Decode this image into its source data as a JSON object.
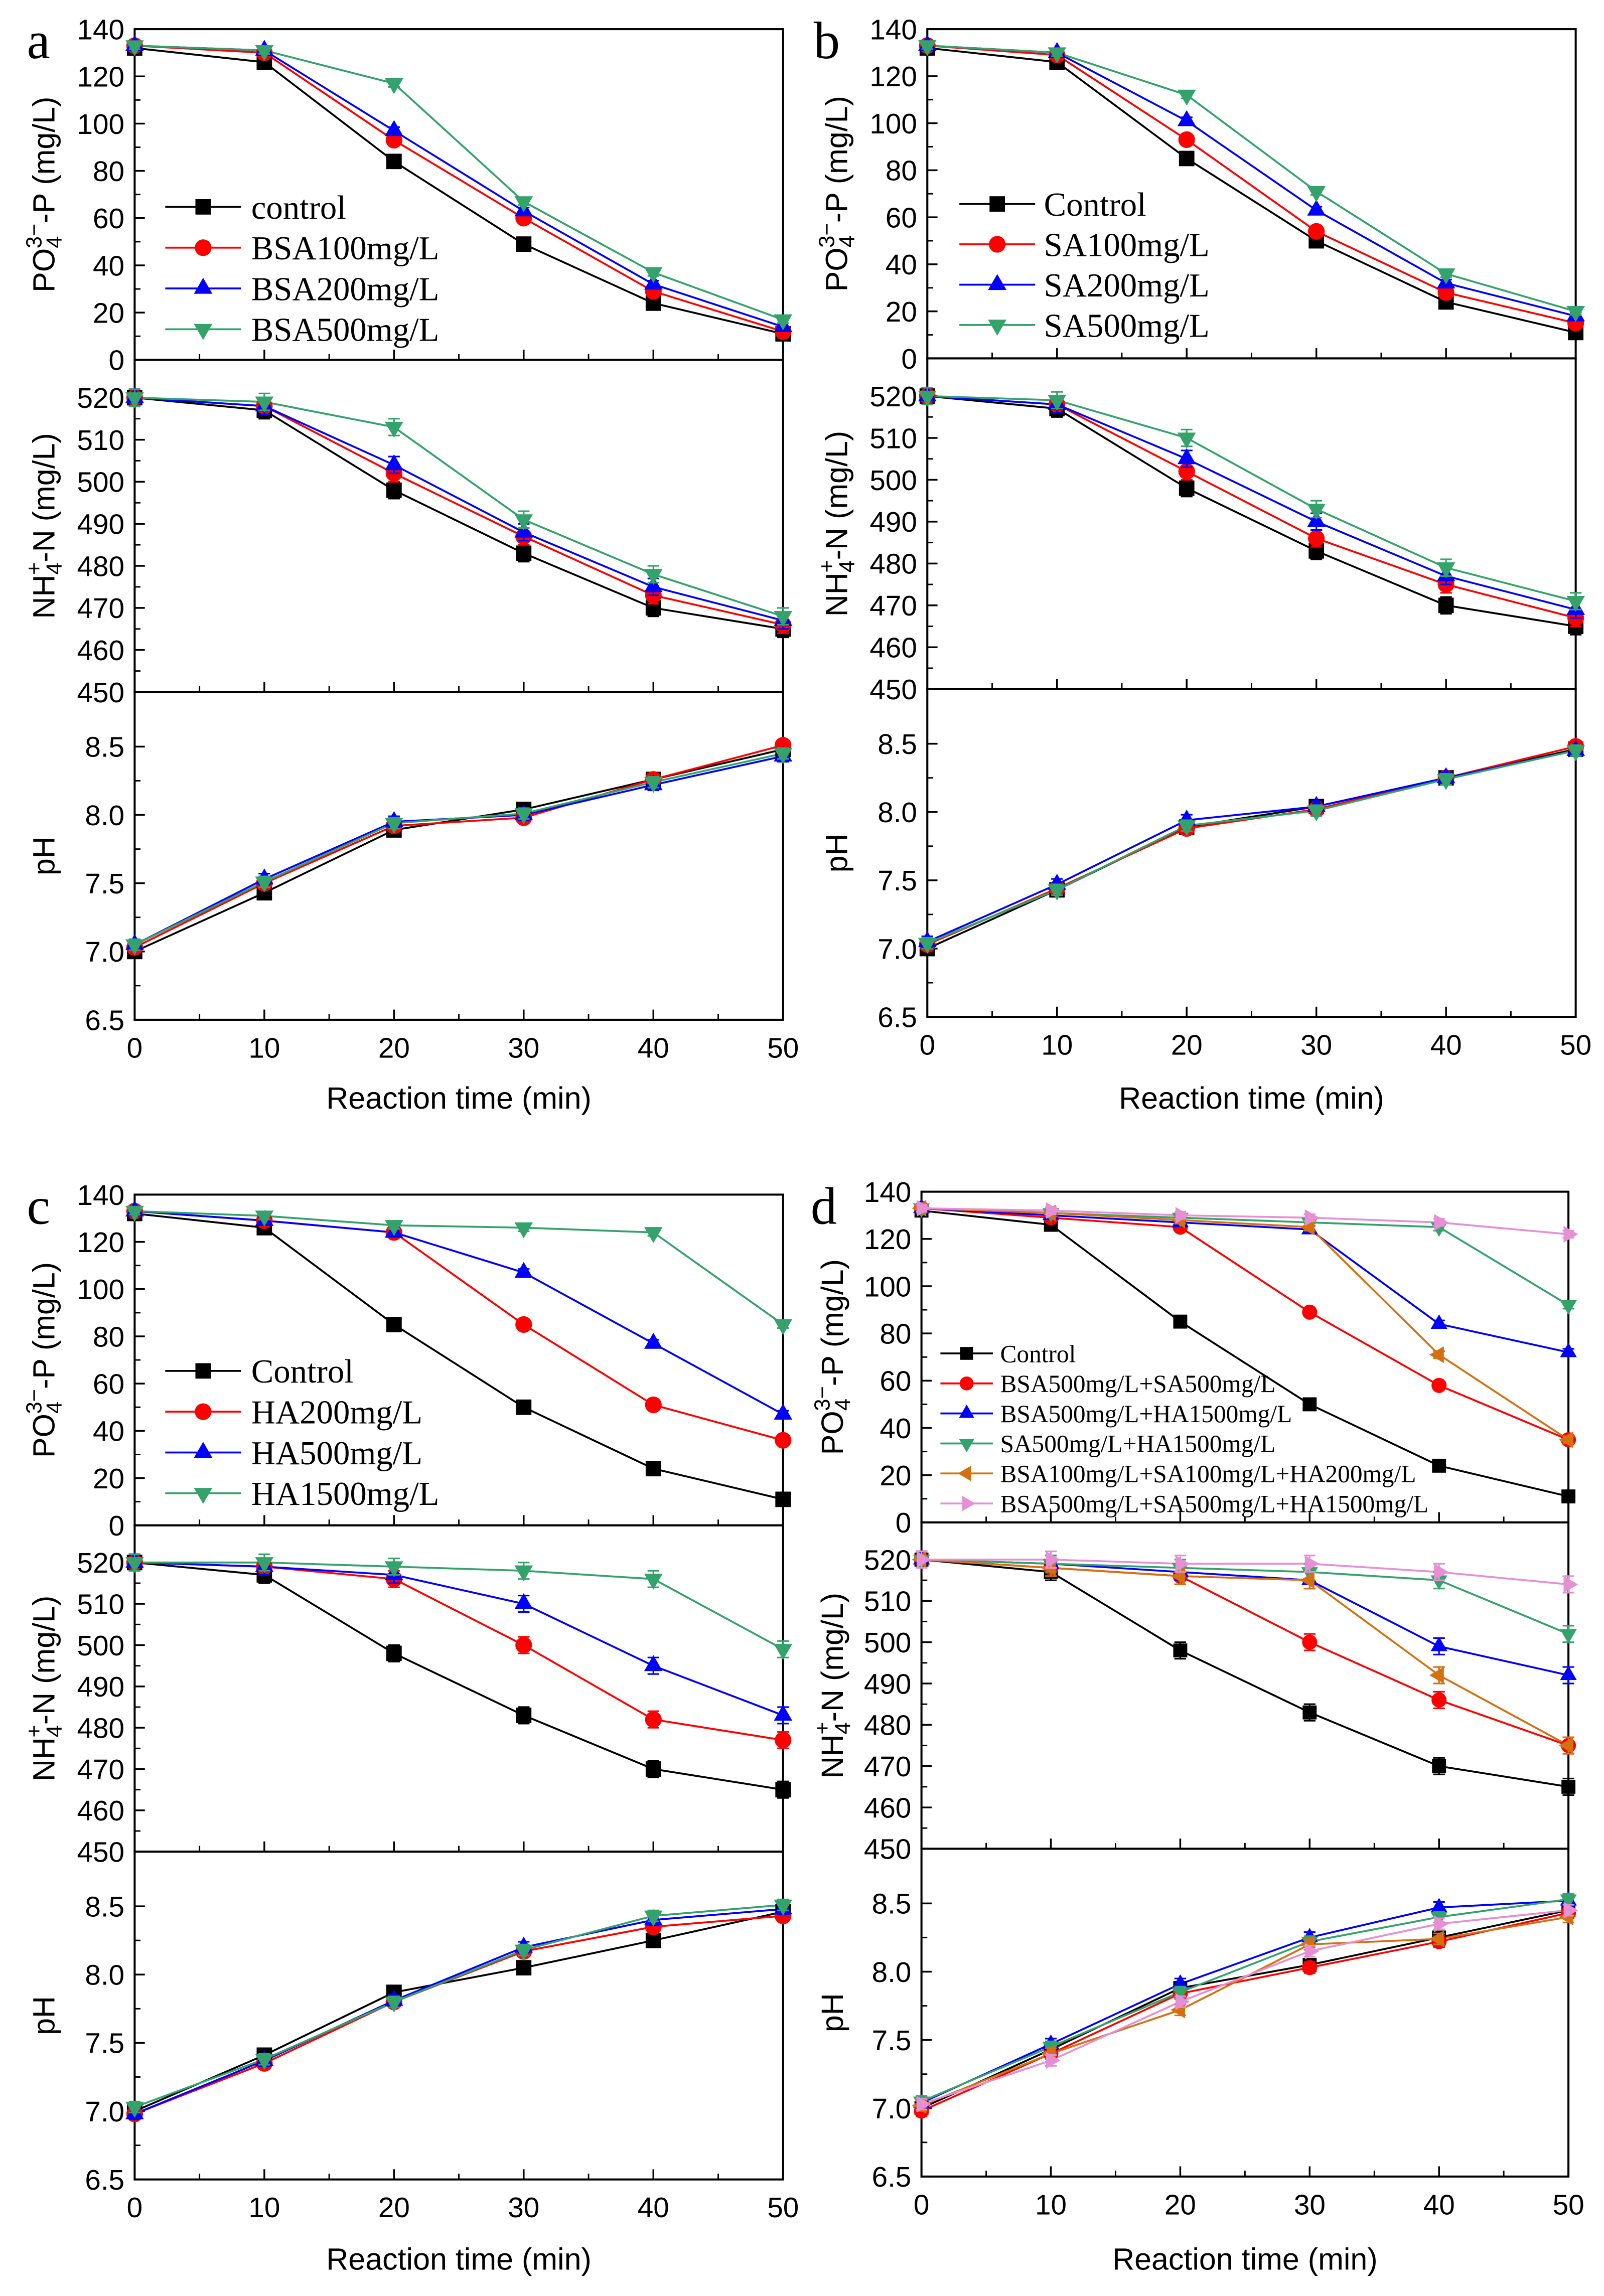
{
  "chart_data": [
    {
      "panel": "a",
      "type": "line",
      "xlabel": "Reaction time (min)",
      "x": [
        0,
        10,
        20,
        30,
        40,
        50
      ],
      "xlim": [
        0,
        50
      ],
      "xticks": [
        0,
        10,
        20,
        30,
        40,
        50
      ],
      "legend_location": "lower-left",
      "subplots": {
        "PO4_P": {
          "ylabel": {
            "text": "PO",
            "sub": "4",
            "sup": "3−",
            "tail": "-P (mg/L)"
          },
          "ylim": [
            0,
            140
          ],
          "yticks": [
            0,
            20,
            40,
            60,
            80,
            100,
            120,
            140
          ],
          "decimals": 0,
          "error_bar": 1.5
        },
        "NH4_N": {
          "ylabel": {
            "text": "NH",
            "sub": "4",
            "sup": "+",
            "tail": "-N (mg/L)"
          },
          "ylim": [
            450,
            529
          ],
          "yticks": [
            450,
            460,
            470,
            480,
            490,
            500,
            510,
            520
          ],
          "decimals": 0,
          "error_bar": 2
        },
        "pH": {
          "ylabel": {
            "text": "pH"
          },
          "ylim": [
            6.5,
            8.9
          ],
          "yticks": [
            6.5,
            7.0,
            7.5,
            8.0,
            8.5
          ],
          "decimals": 1,
          "error_bar": 0.04
        }
      },
      "series": [
        {
          "name": "control",
          "color": "#000000",
          "marker": "square",
          "values": {
            "PO4_P": [
              132,
              126,
              84,
              49,
              24,
              11
            ],
            "NH4_N": [
              520,
              517,
              498,
              483,
              470,
              465
            ],
            "pH": [
              7.0,
              7.43,
              7.89,
              8.04,
              8.26,
              8.48
            ]
          }
        },
        {
          "name": "BSA100mg/L",
          "color": "#ff0000",
          "marker": "circle",
          "values": {
            "PO4_P": [
              133,
              130,
              93,
              60,
              29,
              12
            ],
            "NH4_N": [
              520,
              518,
              502,
              487,
              473,
              466
            ],
            "pH": [
              7.03,
              7.5,
              7.92,
              7.98,
              8.26,
              8.51
            ]
          }
        },
        {
          "name": "BSA200mg/L",
          "color": "#0000ff",
          "marker": "triangle-up",
          "values": {
            "PO4_P": [
              133,
              131,
              97,
              63,
              32,
              14
            ],
            "NH4_N": [
              520,
              518,
              504,
              488,
              475,
              467
            ],
            "pH": [
              7.05,
              7.53,
              7.95,
              8.0,
              8.22,
              8.43
            ]
          }
        },
        {
          "name": "BSA500mg/L",
          "color": "#33a36b",
          "marker": "triangle-down",
          "values": {
            "PO4_P": [
              133,
              131,
              117,
              67,
              37,
              17
            ],
            "NH4_N": [
              520,
              519,
              513,
              491,
              478,
              468
            ],
            "pH": [
              7.05,
              7.51,
              7.94,
              8.01,
              8.24,
              8.45
            ]
          }
        }
      ]
    },
    {
      "panel": "b",
      "type": "line",
      "xlabel": "Reaction time (min)",
      "x": [
        0,
        10,
        20,
        30,
        40,
        50
      ],
      "xlim": [
        0,
        50
      ],
      "xticks": [
        0,
        10,
        20,
        30,
        40,
        50
      ],
      "legend_location": "lower-left",
      "subplots": {
        "PO4_P": {
          "ylabel": {
            "text": "PO",
            "sub": "4",
            "sup": "3−",
            "tail": "-P (mg/L)"
          },
          "ylim": [
            0,
            140
          ],
          "yticks": [
            0,
            20,
            40,
            60,
            80,
            100,
            120,
            140
          ],
          "decimals": 0,
          "error_bar": 1.5
        },
        "NH4_N": {
          "ylabel": {
            "text": "NH",
            "sub": "4",
            "sup": "+",
            "tail": "-N (mg/L)"
          },
          "ylim": [
            450,
            529
          ],
          "yticks": [
            450,
            460,
            470,
            480,
            490,
            500,
            510,
            520
          ],
          "decimals": 0,
          "error_bar": 2
        },
        "pH": {
          "ylabel": {
            "text": "pH"
          },
          "ylim": [
            6.5,
            8.9
          ],
          "yticks": [
            6.5,
            7.0,
            7.5,
            8.0,
            8.5
          ],
          "decimals": 1,
          "error_bar": 0.04
        }
      },
      "series": [
        {
          "name": "Control",
          "color": "#000000",
          "marker": "square",
          "values": {
            "PO4_P": [
              132,
              126,
              85,
              50,
              24,
              11
            ],
            "NH4_N": [
              520,
              517,
              498,
              483,
              470,
              465
            ],
            "pH": [
              7.0,
              7.43,
              7.89,
              8.04,
              8.25,
              8.46
            ]
          }
        },
        {
          "name": "SA100mg/L",
          "color": "#ff0000",
          "marker": "circle",
          "values": {
            "PO4_P": [
              133,
              129,
              93,
              54,
              28,
              15
            ],
            "NH4_N": [
              520,
              518,
              502,
              486,
              475,
              467
            ],
            "pH": [
              7.03,
              7.44,
              7.88,
              8.02,
              8.25,
              8.48
            ]
          }
        },
        {
          "name": "SA200mg/L",
          "color": "#0000ff",
          "marker": "triangle-up",
          "values": {
            "PO4_P": [
              133,
              130,
              101,
              63,
              32,
              18
            ],
            "NH4_N": [
              520,
              518,
              505,
              490,
              477,
              469
            ],
            "pH": [
              7.05,
              7.47,
              7.94,
              8.04,
              8.25,
              8.45
            ]
          }
        },
        {
          "name": "SA500mg/L",
          "color": "#33a36b",
          "marker": "triangle-down",
          "values": {
            "PO4_P": [
              133,
              130,
              112,
              71,
              36,
              20
            ],
            "NH4_N": [
              520,
              519,
              510,
              493,
              479,
              471
            ],
            "pH": [
              7.04,
              7.43,
              7.9,
              8.01,
              8.24,
              8.45
            ]
          }
        }
      ]
    },
    {
      "panel": "c",
      "type": "line",
      "xlabel": "Reaction time (min)",
      "x": [
        0,
        10,
        20,
        30,
        40,
        50
      ],
      "xlim": [
        0,
        50
      ],
      "xticks": [
        0,
        10,
        20,
        30,
        40,
        50
      ],
      "legend_location": "lower-left",
      "subplots": {
        "PO4_P": {
          "ylabel": {
            "text": "PO",
            "sub": "4",
            "sup": "3−",
            "tail": "-P (mg/L)"
          },
          "ylim": [
            0,
            140
          ],
          "yticks": [
            0,
            20,
            40,
            60,
            80,
            100,
            120,
            140
          ],
          "decimals": 0,
          "error_bar": 1.5
        },
        "NH4_N": {
          "ylabel": {
            "text": "NH",
            "sub": "4",
            "sup": "+",
            "tail": "-N (mg/L)"
          },
          "ylim": [
            450,
            529
          ],
          "yticks": [
            450,
            460,
            470,
            480,
            490,
            500,
            510,
            520
          ],
          "decimals": 0,
          "error_bar": 2
        },
        "pH": {
          "ylabel": {
            "text": "pH"
          },
          "ylim": [
            6.5,
            8.9
          ],
          "yticks": [
            6.5,
            7.0,
            7.5,
            8.0,
            8.5
          ],
          "decimals": 1,
          "error_bar": 0.04
        }
      },
      "series": [
        {
          "name": "Control",
          "color": "#000000",
          "marker": "square",
          "values": {
            "PO4_P": [
              132,
              126,
              85,
              50,
              24,
              11
            ],
            "NH4_N": [
              520,
              517,
              498,
              483,
              470,
              465
            ],
            "pH": [
              7.0,
              7.41,
              7.87,
              8.05,
              8.25,
              8.46
            ]
          }
        },
        {
          "name": "HA200mg/L",
          "color": "#ff0000",
          "marker": "circle",
          "values": {
            "PO4_P": [
              133,
              129,
              124,
              85,
              51,
              36
            ],
            "NH4_N": [
              520,
              519,
              516,
              500,
              482,
              477
            ],
            "pH": [
              6.98,
              7.35,
              7.8,
              8.17,
              8.35,
              8.43
            ]
          }
        },
        {
          "name": "HA500mg/L",
          "color": "#0000ff",
          "marker": "triangle-up",
          "values": {
            "PO4_P": [
              133,
              129,
              124,
              107,
              77,
              47
            ],
            "NH4_N": [
              520,
              519,
              517,
              510,
              495,
              483
            ],
            "pH": [
              6.98,
              7.37,
              7.81,
              8.2,
              8.4,
              8.48
            ]
          }
        },
        {
          "name": "HA1500mg/L",
          "color": "#33a36b",
          "marker": "triangle-down",
          "values": {
            "PO4_P": [
              133,
              131,
              127,
              126,
              124,
              85
            ],
            "NH4_N": [
              520,
              520,
              519,
              518,
              516,
              499
            ],
            "pH": [
              7.03,
              7.38,
              7.8,
              8.18,
              8.43,
              8.51
            ]
          }
        }
      ]
    },
    {
      "panel": "d",
      "type": "line",
      "xlabel": "Reaction time (min)",
      "x": [
        0,
        10,
        20,
        30,
        40,
        50
      ],
      "xlim": [
        0,
        50
      ],
      "xticks": [
        0,
        10,
        20,
        30,
        40,
        50
      ],
      "legend_location": "lower-left",
      "subplots": {
        "PO4_P": {
          "ylabel": {
            "text": "PO",
            "sub": "4",
            "sup": "3−",
            "tail": "-P (mg/L)"
          },
          "ylim": [
            0,
            140
          ],
          "yticks": [
            0,
            20,
            40,
            60,
            80,
            100,
            120,
            140
          ],
          "decimals": 0,
          "error_bar": 1.5
        },
        "NH4_N": {
          "ylabel": {
            "text": "NH",
            "sub": "4",
            "sup": "+",
            "tail": "-N (mg/L)"
          },
          "ylim": [
            450,
            529
          ],
          "yticks": [
            450,
            460,
            470,
            480,
            490,
            500,
            510,
            520
          ],
          "decimals": 0,
          "error_bar": 2
        },
        "pH": {
          "ylabel": {
            "text": "pH"
          },
          "ylim": [
            6.5,
            8.9
          ],
          "yticks": [
            6.5,
            7.0,
            7.5,
            8.0,
            8.5
          ],
          "decimals": 1,
          "error_bar": 0.04
        }
      },
      "series": [
        {
          "name": "Control",
          "color": "#000000",
          "marker": "square",
          "values": {
            "PO4_P": [
              132,
              126,
              85,
              50,
              24,
              11
            ],
            "NH4_N": [
              520,
              517,
              498,
              483,
              470,
              465
            ],
            "pH": [
              7.0,
              7.43,
              7.88,
              8.05,
              8.25,
              8.45
            ]
          }
        },
        {
          "name": "BSA500mg/L+SA500mg/L",
          "color": "#ff0000",
          "marker": "circle",
          "values": {
            "PO4_P": [
              133,
              129,
              125,
              89,
              58,
              35
            ],
            "NH4_N": [
              520,
              518,
              516,
              500,
              486,
              475
            ],
            "pH": [
              6.98,
              7.4,
              7.84,
              8.03,
              8.22,
              8.43
            ]
          }
        },
        {
          "name": "BSA500mg/L+HA1500mg/L",
          "color": "#0000ff",
          "marker": "triangle-up",
          "values": {
            "PO4_P": [
              133,
              130,
              127,
              124,
              84,
              72
            ],
            "NH4_N": [
              520,
              519,
              517,
              515,
              499,
              492
            ],
            "pH": [
              7.04,
              7.47,
              7.91,
              8.25,
              8.47,
              8.52
            ]
          }
        },
        {
          "name": "SA500mg/L+HA1500mg/L",
          "color": "#33a36b",
          "marker": "triangle-down",
          "values": {
            "PO4_P": [
              133,
              131,
              129,
              127,
              125,
              92
            ],
            "NH4_N": [
              520,
              519,
              518,
              517,
              515,
              502
            ],
            "pH": [
              7.05,
              7.45,
              7.85,
              8.22,
              8.4,
              8.53
            ]
          }
        },
        {
          "name": "BSA100mg/L+SA100mg/L+HA200mg/L",
          "color": "#d4700f",
          "marker": "triangle-left",
          "values": {
            "PO4_P": [
              133,
              131,
              128,
              125,
              71,
              35
            ],
            "NH4_N": [
              520,
              518,
              516,
              515,
              492,
              475
            ],
            "pH": [
              7.02,
              7.4,
              7.72,
              8.2,
              8.24,
              8.4
            ]
          }
        },
        {
          "name": "BSA500mg/L+SA500mg/L+HA1500mg/L",
          "color": "#e68fd4",
          "marker": "triangle-right",
          "values": {
            "PO4_P": [
              133,
              132,
              130,
              129,
              127,
              122
            ],
            "NH4_N": [
              520,
              520,
              519,
              519,
              517,
              514
            ],
            "pH": [
              7.03,
              7.35,
              7.78,
              8.15,
              8.35,
              8.45
            ]
          }
        }
      ]
    }
  ]
}
